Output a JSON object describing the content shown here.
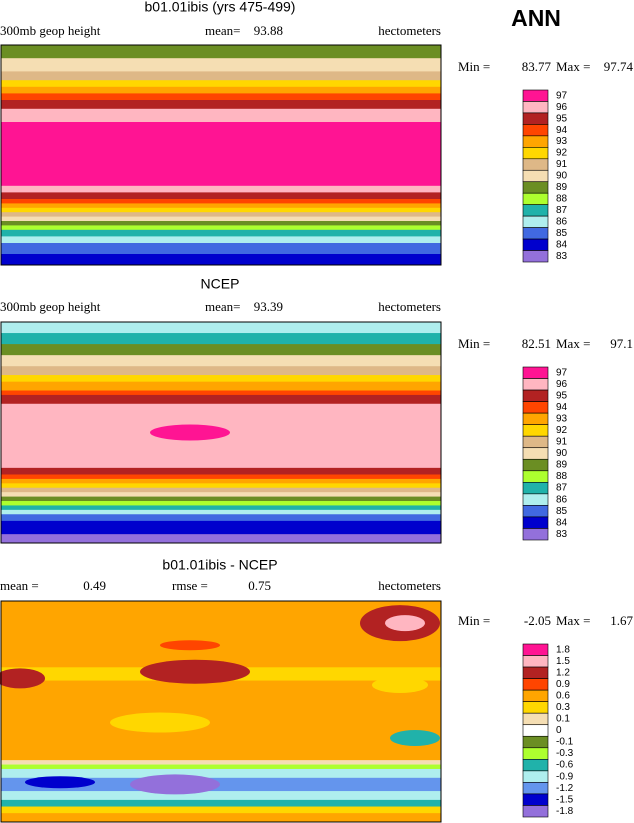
{
  "header": {
    "season": "ANN"
  },
  "panels": [
    {
      "title": "b01.01ibis (yrs 475-499)",
      "left_label": "300mb geop height",
      "stats": [
        {
          "label": "mean=",
          "value": 93.88
        }
      ],
      "units": "hectometers",
      "min_label": "Min =",
      "min": 83.77,
      "max_label": "Max =",
      "max": 97.74,
      "colorbar": {
        "labels": [
          97,
          96,
          95,
          94,
          93,
          92,
          91,
          90,
          89,
          88,
          87,
          86,
          85,
          84,
          83
        ],
        "colors": [
          "#ff1493",
          "#ffb6c1",
          "#b22222",
          "#ff4500",
          "#ffa500",
          "#ffd700",
          "#deb887",
          "#f5deb3",
          "#6b8e23",
          "#adff2f",
          "#20b2aa",
          "#afeeee",
          "#4169e1",
          "#0000cd",
          "#9370db"
        ]
      }
    },
    {
      "title": "NCEP",
      "left_label": "300mb geop height",
      "stats": [
        {
          "label": "mean=",
          "value": 93.39
        }
      ],
      "units": "hectometers",
      "min_label": "Min =",
      "min": 82.51,
      "max_label": "Max =",
      "max": 97.1,
      "colorbar": {
        "labels": [
          97,
          96,
          95,
          94,
          93,
          92,
          91,
          90,
          89,
          88,
          87,
          86,
          85,
          84,
          83
        ],
        "colors": [
          "#ff1493",
          "#ffb6c1",
          "#b22222",
          "#ff4500",
          "#ffa500",
          "#ffd700",
          "#deb887",
          "#f5deb3",
          "#6b8e23",
          "#adff2f",
          "#20b2aa",
          "#afeeee",
          "#4169e1",
          "#0000cd",
          "#9370db"
        ]
      }
    },
    {
      "title": "b01.01ibis - NCEP",
      "left_label": null,
      "stats": [
        {
          "label": "mean =",
          "value": 0.49
        },
        {
          "label": "rmse =",
          "value": 0.75
        }
      ],
      "units": "hectometers",
      "min_label": "Min =",
      "min": -2.05,
      "max_label": "Max =",
      "max": 1.67,
      "colorbar": {
        "labels": [
          1.8,
          1.5,
          1.2,
          0.9,
          0.6,
          0.3,
          0.1,
          0,
          -0.1,
          -0.3,
          -0.6,
          -0.9,
          -1.2,
          -1.5,
          -1.8
        ],
        "colors": [
          "#ff1493",
          "#ffb6c1",
          "#b22222",
          "#ff4500",
          "#ffa500",
          "#ffd700",
          "#f5deb3",
          "#ffffff",
          "#6b8e23",
          "#adff2f",
          "#20b2aa",
          "#afeeee",
          "#6495ed",
          "#0000cd",
          "#9370db"
        ]
      }
    }
  ]
}
